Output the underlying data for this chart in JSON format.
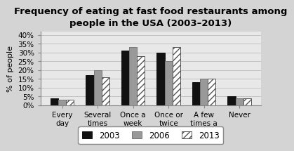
{
  "title": "Frequency of eating at fast food restaurants among\npeople in the USA (2003–2013)",
  "categories": [
    "Every\nday",
    "Several\ntimes\na week",
    "Once a\nweek",
    "Once or\ntwice\na month",
    "A few\ntimes a\nyear",
    "Never"
  ],
  "series": {
    "2003": [
      4,
      17,
      31,
      30,
      13,
      5
    ],
    "2006": [
      3,
      20,
      33,
      25,
      15,
      4
    ],
    "2013": [
      3,
      16,
      28,
      33,
      15,
      4
    ]
  },
  "bar_colors": {
    "2003": "#111111",
    "2006": "#999999",
    "2013": "#ffffff"
  },
  "bar_edge_colors": {
    "2003": "#111111",
    "2006": "#777777",
    "2013": "#555555"
  },
  "hatch": {
    "2003": "",
    "2006": "",
    "2013": "////"
  },
  "ylabel": "% of people",
  "ylim": [
    0,
    42
  ],
  "yticks": [
    0,
    5,
    10,
    15,
    20,
    25,
    30,
    35,
    40
  ],
  "ytick_labels": [
    "0%",
    "5%",
    "10%",
    "15%",
    "20%",
    "25%",
    "30%",
    "35%",
    "40%"
  ],
  "title_fontsize": 9.5,
  "axis_fontsize": 8,
  "tick_fontsize": 7.5,
  "legend_fontsize": 8.5,
  "bar_width": 0.22,
  "background_color": "#d4d4d4",
  "plot_bg_color": "#e8e8e8"
}
